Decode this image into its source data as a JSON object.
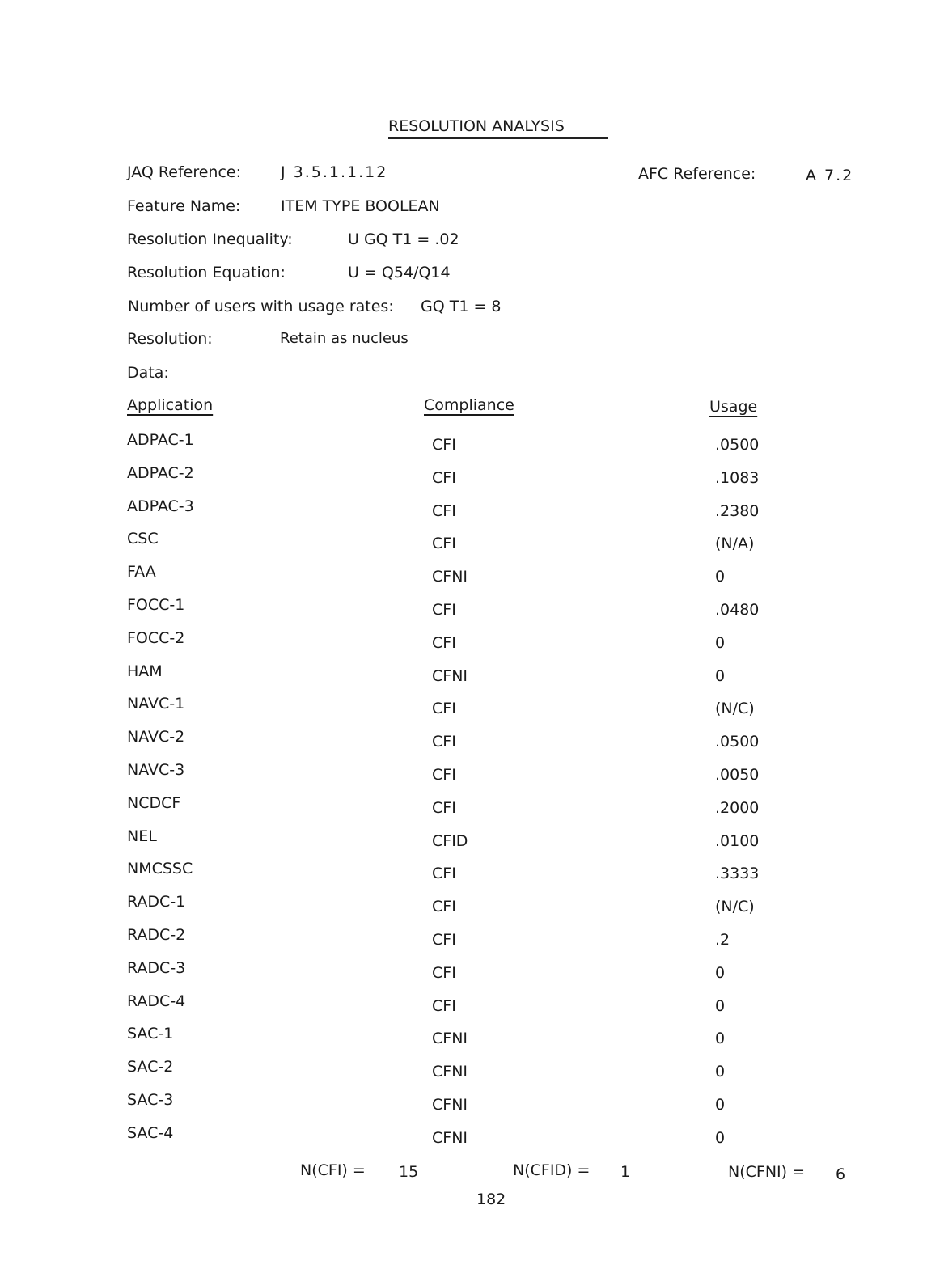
{
  "title": "RESOLUTION ANALYSIS",
  "header": {
    "jaq_label": "JAQ Reference:",
    "jaq_value": "J 3.5.1.1.12",
    "afc_label": "AFC Reference:",
    "afc_value": "A 7.2",
    "feature_label": "Feature Name:",
    "feature_value": "ITEM TYPE BOOLEAN",
    "inequality_label": "Resolution Inequality:",
    "inequality_value": "U GQ T1 = .02",
    "equation_label": "Resolution Equation:",
    "equation_value": "U = Q54/Q14",
    "users_label": "Number of users with usage rates:",
    "users_value": "GQ T1 = 8",
    "resolution_label": "Resolution:",
    "resolution_value": "Retain as nucleus",
    "data_label": "Data:"
  },
  "table": {
    "columns": [
      "Application",
      "Compliance",
      "Usage"
    ],
    "rows": [
      [
        "ADPAC-1",
        "CFI",
        ".0500"
      ],
      [
        "ADPAC-2",
        "CFI",
        ".1083"
      ],
      [
        "ADPAC-3",
        "CFI",
        ".2380"
      ],
      [
        "CSC",
        "CFI",
        "(N/A)"
      ],
      [
        "FAA",
        "CFNI",
        "0"
      ],
      [
        "FOCC-1",
        "CFI",
        ".0480"
      ],
      [
        "FOCC-2",
        "CFI",
        "0"
      ],
      [
        "HAM",
        "CFNI",
        "0"
      ],
      [
        "NAVC-1",
        "CFI",
        "(N/C)"
      ],
      [
        "NAVC-2",
        "CFI",
        ".0500"
      ],
      [
        "NAVC-3",
        "CFI",
        ".0050"
      ],
      [
        "NCDCF",
        "CFI",
        ".2000"
      ],
      [
        "NEL",
        "CFID",
        ".0100"
      ],
      [
        "NMCSSC",
        "CFI",
        ".3333"
      ],
      [
        "RADC-1",
        "CFI",
        "(N/C)"
      ],
      [
        "RADC-2",
        "CFI",
        ".2"
      ],
      [
        "RADC-3",
        "CFI",
        "0"
      ],
      [
        "RADC-4",
        "CFI",
        "0"
      ],
      [
        "SAC-1",
        "CFNI",
        "0"
      ],
      [
        "SAC-2",
        "CFNI",
        "0"
      ],
      [
        "SAC-3",
        "CFNI",
        "0"
      ],
      [
        "SAC-4",
        "CFNI",
        "0"
      ]
    ]
  },
  "totals": {
    "cfi_label": "N(CFI) =",
    "cfi_value": "15",
    "cfid_label": "N(CFID) =",
    "cfid_value": "1",
    "cfni_label": "N(CFNI) =",
    "cfni_value": "6"
  },
  "page_number": "182"
}
